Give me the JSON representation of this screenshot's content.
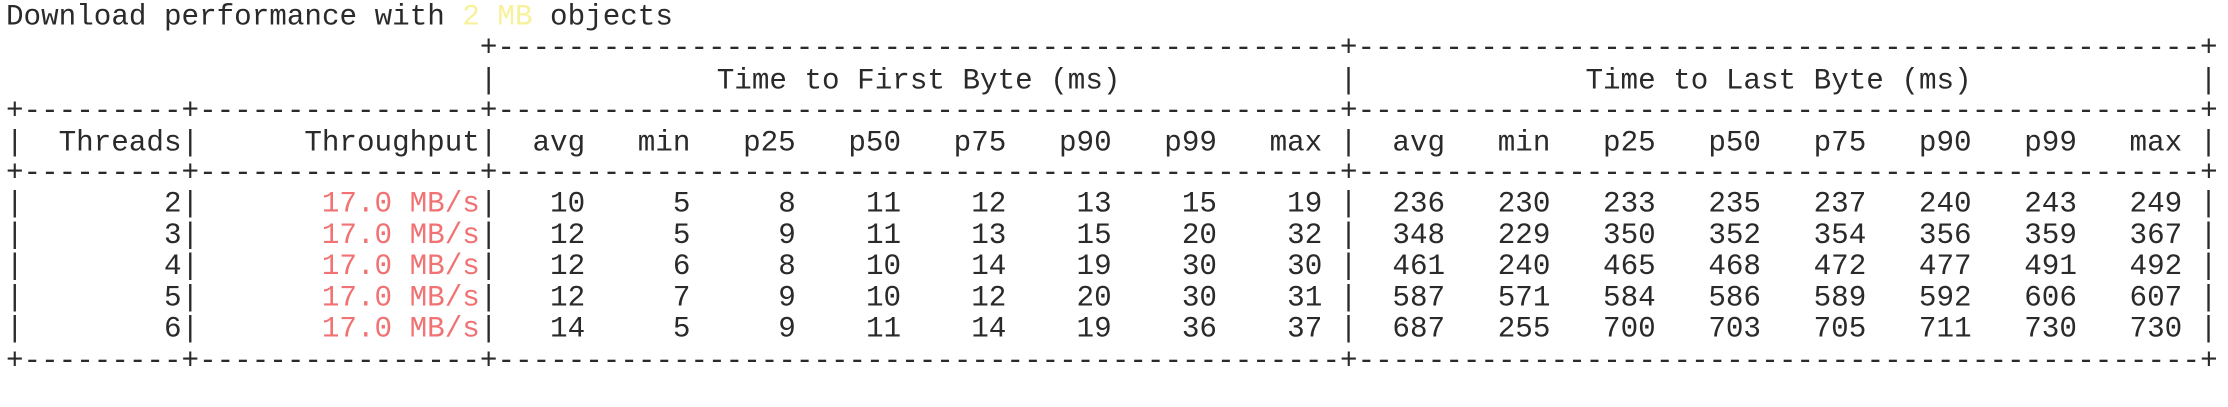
{
  "title": {
    "prefix": "Download performance with",
    "size": "2 MB",
    "suffix": "objects"
  },
  "table": {
    "group_headers": [
      "Time to First Byte (ms)",
      "Time to Last Byte (ms)"
    ],
    "columns": [
      "Threads",
      "Throughput",
      "avg",
      "min",
      "p25",
      "p50",
      "p75",
      "p90",
      "p99",
      "max",
      "avg",
      "min",
      "p25",
      "p50",
      "p75",
      "p90",
      "p99",
      "max"
    ],
    "rows": [
      [
        2,
        "17.0 MB/s",
        10,
        5,
        8,
        11,
        12,
        13,
        15,
        19,
        236,
        230,
        233,
        235,
        237,
        240,
        243,
        249
      ],
      [
        3,
        "17.0 MB/s",
        12,
        5,
        9,
        11,
        13,
        15,
        20,
        32,
        348,
        229,
        350,
        352,
        354,
        356,
        359,
        367
      ],
      [
        4,
        "17.0 MB/s",
        12,
        6,
        8,
        10,
        14,
        19,
        30,
        30,
        461,
        240,
        465,
        468,
        472,
        477,
        491,
        492
      ],
      [
        5,
        "17.0 MB/s",
        12,
        7,
        9,
        10,
        12,
        20,
        30,
        31,
        587,
        571,
        584,
        586,
        589,
        592,
        606,
        607
      ],
      [
        6,
        "17.0 MB/s",
        14,
        5,
        9,
        11,
        14,
        19,
        36,
        37,
        687,
        255,
        700,
        703,
        705,
        711,
        730,
        730
      ]
    ]
  }
}
